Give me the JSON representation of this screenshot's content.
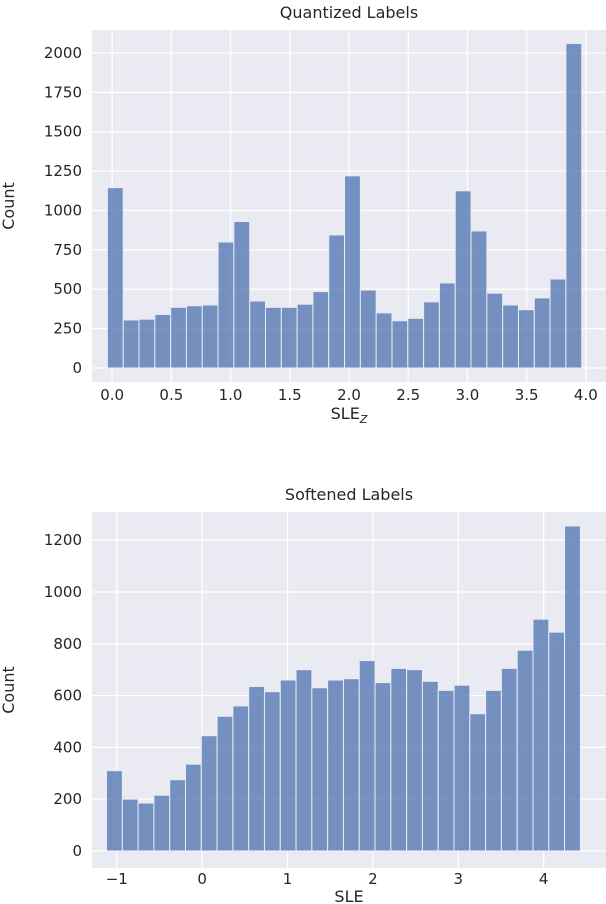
{
  "chart_data": [
    {
      "type": "histogram",
      "title": "Quantized Labels",
      "xlabel": "SLE",
      "xlabel_sub": "Z",
      "ylabel": "Count",
      "color": "#4c72b0",
      "grid": true,
      "bins": [
        -0.04,
        0.0935,
        0.227,
        0.3605,
        0.494,
        0.6275,
        0.761,
        0.8945,
        1.028,
        1.1615,
        1.295,
        1.4285,
        1.562,
        1.6955,
        1.829,
        1.9625,
        2.096,
        2.2295,
        2.363,
        2.4965,
        2.63,
        2.7635,
        2.897,
        3.0305,
        3.164,
        3.2975,
        3.431,
        3.5645,
        3.698,
        3.8315,
        3.965
      ],
      "values": [
        1145,
        305,
        310,
        340,
        385,
        395,
        400,
        800,
        930,
        425,
        385,
        385,
        405,
        485,
        845,
        1220,
        495,
        350,
        300,
        315,
        420,
        540,
        1125,
        870,
        475,
        400,
        370,
        445,
        565,
        2060
      ],
      "xlim": [
        -0.17,
        4.17
      ],
      "ylim": [
        -89,
        2146
      ],
      "xticks": [
        {
          "value": 0,
          "label": "0.0"
        },
        0.5,
        {
          "value": 1,
          "label": "1.0"
        },
        1.5,
        {
          "value": 2,
          "label": "2.0"
        },
        2.5,
        {
          "value": 3,
          "label": "3.0"
        },
        3.5,
        {
          "value": 4,
          "label": "4.0"
        }
      ],
      "yticks": [
        0,
        250,
        500,
        750,
        1000,
        1250,
        1500,
        1750,
        2000
      ]
    },
    {
      "type": "histogram",
      "title": "Softened Labels",
      "xlabel": "SLE",
      "ylabel": "Count",
      "color": "#4c72b0",
      "grid": true,
      "bins": [
        -1.12,
        -0.935,
        -0.75,
        -0.565,
        -0.38,
        -0.195,
        -0.01,
        0.175,
        0.36,
        0.545,
        0.73,
        0.915,
        1.1,
        1.285,
        1.47,
        1.655,
        1.84,
        2.025,
        2.21,
        2.395,
        2.58,
        2.765,
        2.95,
        3.135,
        3.32,
        3.505,
        3.69,
        3.875,
        4.06,
        4.245,
        4.43
      ],
      "values": [
        310,
        200,
        185,
        215,
        275,
        335,
        445,
        520,
        560,
        635,
        615,
        660,
        700,
        630,
        660,
        665,
        735,
        650,
        705,
        700,
        655,
        620,
        640,
        530,
        620,
        705,
        775,
        895,
        845,
        1255
      ],
      "xlim": [
        -1.29,
        4.73
      ],
      "ylim": [
        -66,
        1309
      ],
      "xticks": [
        {
          "value": -1,
          "label": "−1"
        },
        0,
        1,
        2,
        3,
        4
      ],
      "yticks": [
        0,
        200,
        400,
        600,
        800,
        1000,
        1200
      ]
    }
  ]
}
